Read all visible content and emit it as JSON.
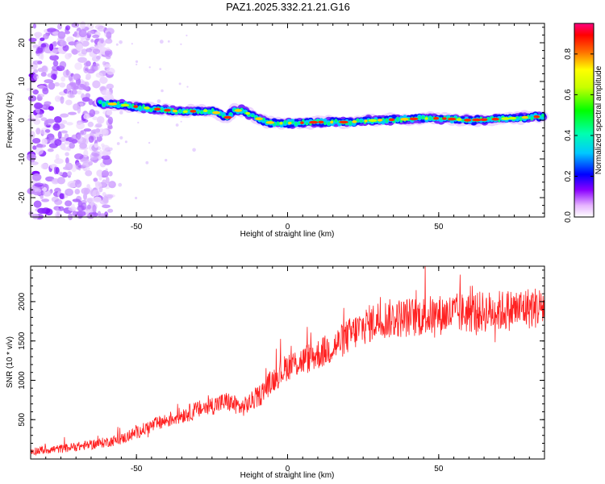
{
  "figure": {
    "title": "PAZ1.2025.332.21.21.G16"
  },
  "chart_data": [
    {
      "type": "heatmap",
      "title": "PAZ1.2025.332.21.21.G16",
      "xlabel": "Height of straight line (km)",
      "ylabel": "Frequency (Hz)",
      "xlim": [
        -85,
        85
      ],
      "ylim": [
        -25,
        25
      ],
      "xticks": [
        -50,
        0,
        50
      ],
      "yticks": [
        -20,
        -10,
        0,
        10,
        20
      ],
      "x_tick_labels": [
        "-50",
        "0",
        "50"
      ],
      "y_tick_labels": [
        "-20",
        "-10",
        "0",
        "10",
        "20"
      ],
      "colorbar": {
        "label": "Normalized spectral amplitude",
        "range": [
          0,
          0.95
        ],
        "ticks": [
          0.0,
          0.2,
          0.4,
          0.6,
          0.8
        ],
        "tick_labels": [
          "0.0",
          "0.2",
          "0.4",
          "0.6",
          "0.8"
        ]
      },
      "ridge": {
        "x": [
          -63,
          -55,
          -45,
          -35,
          -25,
          -20,
          -18,
          -15,
          -10,
          -5,
          0,
          10,
          20,
          30,
          40,
          50,
          60,
          70,
          80,
          85
        ],
        "y": [
          4.5,
          4.0,
          3.0,
          2.2,
          2.5,
          0.5,
          2.5,
          2.5,
          0.5,
          -0.8,
          -0.8,
          -0.5,
          -0.5,
          0.0,
          0.3,
          0.5,
          0.0,
          0.3,
          0.8,
          1.0
        ]
      },
      "noise_region_x": [
        -85,
        -58
      ]
    },
    {
      "type": "line",
      "title": "",
      "xlabel": "Height of straight line (km)",
      "ylabel": "SNR (10 * v/v)",
      "xlim": [
        -85,
        85
      ],
      "ylim": [
        0,
        2450
      ],
      "xticks": [
        -50,
        0,
        50
      ],
      "yticks": [
        500,
        1000,
        1500,
        2000
      ],
      "x_tick_labels": [
        "-50",
        "0",
        "50"
      ],
      "y_tick_labels": [
        "500",
        "1000",
        "1500",
        "2000"
      ],
      "series": [
        {
          "name": "SNR",
          "color": "#ff2020",
          "trend_x": [
            -85,
            -75,
            -65,
            -55,
            -45,
            -35,
            -25,
            -20,
            -15,
            -10,
            -5,
            0,
            5,
            10,
            15,
            20,
            25,
            30,
            40,
            50,
            60,
            70,
            80,
            85
          ],
          "trend_y": [
            100,
            130,
            180,
            250,
            420,
            560,
            680,
            730,
            650,
            780,
            1000,
            1180,
            1250,
            1330,
            1420,
            1560,
            1680,
            1770,
            1800,
            1830,
            1860,
            1880,
            1920,
            1930
          ]
        }
      ]
    }
  ]
}
